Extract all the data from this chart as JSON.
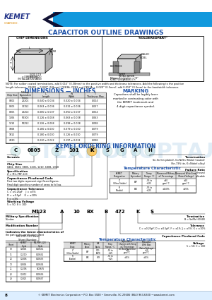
{
  "title": "CAPACITOR OUTLINE DRAWINGS",
  "header_bg": "#1199dd",
  "title_color": "#2255aa",
  "footer": "© KEMET Electronics Corporation • P.O. Box 5928 • Greenville, SC 29606 (864) 963-6300 • www.kemet.com",
  "page_num": "8",
  "watermark_text": "ТЕХНОПОРТАЛ",
  "bg_color": "#ffffff",
  "dim_table_rows": [
    [
      "0402",
      "20201",
      "0.040 ± 0.004",
      "0.020 ± 0.004",
      "0.024"
    ],
    [
      "0603",
      "30152",
      "0.063 ± 0.006",
      "0.032 ± 0.006",
      "0.037"
    ],
    [
      "0805",
      "40202",
      "0.080 ± 0.007",
      "0.050 ± 0.007",
      "0.054"
    ],
    [
      "1206",
      "50303",
      "0.126 ± 0.008",
      "0.063 ± 0.008",
      "0.063"
    ],
    [
      "1210",
      "50252",
      "0.126 ± 0.008",
      "0.098 ± 0.008",
      "0.098"
    ],
    [
      "1808",
      "",
      "0.180 ± 0.010",
      "0.079 ± 0.010",
      "0.079"
    ],
    [
      "1812",
      "",
      "0.180 ± 0.010",
      "0.126 ± 0.010",
      "0.079"
    ],
    [
      "2220",
      "",
      "0.220 ± 0.012",
      "0.197 ± 0.012",
      "0.098"
    ]
  ],
  "slash_table_rows": [
    [
      "10",
      "C0805",
      "CK0631"
    ],
    [
      "11",
      "C1210",
      "CK0632"
    ],
    [
      "12",
      "C1806",
      "CK0633"
    ],
    [
      "13",
      "C0805",
      "CK0634"
    ],
    [
      "21",
      "C1206",
      "CK0635"
    ],
    [
      "22",
      "C1812",
      "CK0636"
    ],
    [
      "23",
      "C1825",
      "CK0637"
    ]
  ]
}
